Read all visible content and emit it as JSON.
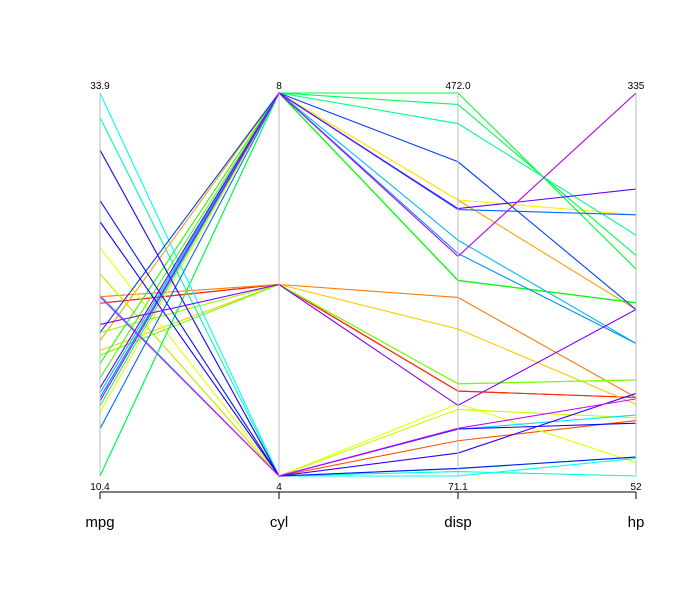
{
  "chart_data": {
    "type": "parallel_coordinates",
    "axes": [
      {
        "name": "mpg",
        "min": "10.4",
        "max": "33.9",
        "min_value": 10.4,
        "max_value": 33.9
      },
      {
        "name": "cyl",
        "min": "4",
        "max": "8",
        "min_value": 4,
        "max_value": 8
      },
      {
        "name": "disp",
        "min": "71.1",
        "max": "472.0",
        "min_value": 71.1,
        "max_value": 472.0
      },
      {
        "name": "hp",
        "min": "52",
        "max": "335",
        "min_value": 52,
        "max_value": 335
      }
    ],
    "rows": [
      {
        "mpg": 21.0,
        "cyl": 6,
        "disp": 160.0,
        "hp": 110
      },
      {
        "mpg": 21.0,
        "cyl": 6,
        "disp": 160.0,
        "hp": 110
      },
      {
        "mpg": 22.8,
        "cyl": 4,
        "disp": 108.0,
        "hp": 93
      },
      {
        "mpg": 21.4,
        "cyl": 6,
        "disp": 258.0,
        "hp": 110
      },
      {
        "mpg": 18.7,
        "cyl": 8,
        "disp": 360.0,
        "hp": 175
      },
      {
        "mpg": 18.1,
        "cyl": 6,
        "disp": 225.0,
        "hp": 105
      },
      {
        "mpg": 14.3,
        "cyl": 8,
        "disp": 360.0,
        "hp": 245
      },
      {
        "mpg": 24.4,
        "cyl": 4,
        "disp": 146.7,
        "hp": 62
      },
      {
        "mpg": 22.8,
        "cyl": 4,
        "disp": 140.8,
        "hp": 95
      },
      {
        "mpg": 19.2,
        "cyl": 6,
        "disp": 167.6,
        "hp": 123
      },
      {
        "mpg": 17.8,
        "cyl": 6,
        "disp": 167.6,
        "hp": 123
      },
      {
        "mpg": 16.4,
        "cyl": 8,
        "disp": 275.8,
        "hp": 180
      },
      {
        "mpg": 17.3,
        "cyl": 8,
        "disp": 275.8,
        "hp": 180
      },
      {
        "mpg": 15.2,
        "cyl": 8,
        "disp": 275.8,
        "hp": 180
      },
      {
        "mpg": 10.4,
        "cyl": 8,
        "disp": 472.0,
        "hp": 205
      },
      {
        "mpg": 10.4,
        "cyl": 8,
        "disp": 460.0,
        "hp": 215
      },
      {
        "mpg": 14.7,
        "cyl": 8,
        "disp": 440.0,
        "hp": 230
      },
      {
        "mpg": 32.4,
        "cyl": 4,
        "disp": 78.7,
        "hp": 66
      },
      {
        "mpg": 30.4,
        "cyl": 4,
        "disp": 75.7,
        "hp": 52
      },
      {
        "mpg": 33.9,
        "cyl": 4,
        "disp": 71.1,
        "hp": 65
      },
      {
        "mpg": 21.5,
        "cyl": 4,
        "disp": 120.1,
        "hp": 97
      },
      {
        "mpg": 15.5,
        "cyl": 8,
        "disp": 318.0,
        "hp": 150
      },
      {
        "mpg": 15.2,
        "cyl": 8,
        "disp": 304.0,
        "hp": 150
      },
      {
        "mpg": 13.3,
        "cyl": 8,
        "disp": 350.0,
        "hp": 245
      },
      {
        "mpg": 19.2,
        "cyl": 8,
        "disp": 400.0,
        "hp": 175
      },
      {
        "mpg": 27.3,
        "cyl": 4,
        "disp": 79.0,
        "hp": 66
      },
      {
        "mpg": 26.0,
        "cyl": 4,
        "disp": 120.3,
        "hp": 91
      },
      {
        "mpg": 30.4,
        "cyl": 4,
        "disp": 95.1,
        "hp": 113
      },
      {
        "mpg": 15.8,
        "cyl": 8,
        "disp": 351.0,
        "hp": 264
      },
      {
        "mpg": 19.7,
        "cyl": 6,
        "disp": 145.0,
        "hp": 175
      },
      {
        "mpg": 15.0,
        "cyl": 8,
        "disp": 301.0,
        "hp": 335
      },
      {
        "mpg": 21.4,
        "cyl": 4,
        "disp": 121.0,
        "hp": 109
      }
    ],
    "palette": "rainbow",
    "grid": false,
    "legend": "none"
  }
}
